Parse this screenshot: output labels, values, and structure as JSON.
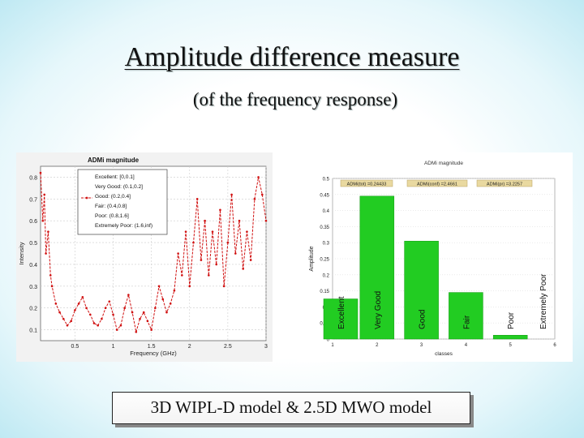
{
  "slide": {
    "title": "Amplitude difference measure",
    "subtitle": "(of  the frequency response)",
    "caption": "3D WIPL-D model & 2.5D MWO model"
  },
  "chart_data": [
    {
      "type": "line",
      "title": "ADMi magnitude",
      "xlabel": "Frequency (GHz)",
      "ylabel": "Intensity",
      "xlim": [
        0.05,
        3
      ],
      "ylim": [
        0.05,
        0.85
      ],
      "xticks": [
        "0.5",
        "1",
        "1.5",
        "2",
        "2.5",
        "3"
      ],
      "yticks": [
        "0.1",
        "0.2",
        "0.3",
        "0.4",
        "0.5",
        "0.6",
        "0.7",
        "0.8"
      ],
      "legend": [
        "Excellent: [0,0.1]",
        "Very Good: (0.1,0.2]",
        "Good: (0.2,0.4]",
        "Fair: (0.4,0.8]",
        "Poor: (0.8,1.6]",
        "Extremely Poor: (1.6,inf)"
      ],
      "series": [
        {
          "name": "ADMi",
          "color": "#d01010",
          "x": [
            0.05,
            0.08,
            0.1,
            0.12,
            0.15,
            0.18,
            0.2,
            0.25,
            0.3,
            0.35,
            0.4,
            0.45,
            0.5,
            0.55,
            0.6,
            0.65,
            0.7,
            0.75,
            0.8,
            0.85,
            0.9,
            0.95,
            1.0,
            1.05,
            1.1,
            1.15,
            1.2,
            1.25,
            1.3,
            1.35,
            1.4,
            1.45,
            1.5,
            1.55,
            1.6,
            1.65,
            1.7,
            1.75,
            1.8,
            1.85,
            1.9,
            1.95,
            2.0,
            2.05,
            2.1,
            2.15,
            2.2,
            2.25,
            2.3,
            2.35,
            2.4,
            2.45,
            2.5,
            2.55,
            2.6,
            2.65,
            2.7,
            2.75,
            2.8,
            2.85,
            2.9,
            2.95,
            3.0
          ],
          "y": [
            0.82,
            0.6,
            0.72,
            0.45,
            0.55,
            0.35,
            0.3,
            0.22,
            0.18,
            0.15,
            0.12,
            0.14,
            0.19,
            0.22,
            0.25,
            0.2,
            0.17,
            0.13,
            0.12,
            0.15,
            0.2,
            0.23,
            0.17,
            0.1,
            0.12,
            0.2,
            0.26,
            0.18,
            0.09,
            0.15,
            0.18,
            0.14,
            0.1,
            0.2,
            0.3,
            0.24,
            0.18,
            0.22,
            0.28,
            0.45,
            0.35,
            0.55,
            0.3,
            0.5,
            0.7,
            0.42,
            0.6,
            0.35,
            0.55,
            0.4,
            0.65,
            0.3,
            0.5,
            0.72,
            0.45,
            0.6,
            0.38,
            0.55,
            0.42,
            0.7,
            0.8,
            0.72,
            0.6
          ]
        }
      ]
    },
    {
      "type": "bar",
      "title": "ADMi magnitude",
      "xlabel": "classes",
      "ylabel": "Amplitude",
      "xlim": [
        1,
        6
      ],
      "ylim": [
        0,
        0.5
      ],
      "xticks": [
        "1",
        "2",
        "3",
        "4",
        "5",
        "6"
      ],
      "yticks": [
        "0",
        "0.05",
        "0.1",
        "0.15",
        "0.2",
        "0.25",
        "0.3",
        "0.35",
        "0.4",
        "0.45",
        "0.5"
      ],
      "categories": [
        "Excellent",
        "Very Good",
        "Good",
        "Fair",
        "Poor",
        "Extremely Poor"
      ],
      "values": [
        0.125,
        0.445,
        0.305,
        0.145,
        0.012,
        0
      ],
      "bar_color": "#22cc22",
      "annotations": [
        "ADMi(tot) =0.24433",
        "ADMi(conf) =2.4661",
        "ADMi(pr) =3.2257"
      ]
    }
  ]
}
